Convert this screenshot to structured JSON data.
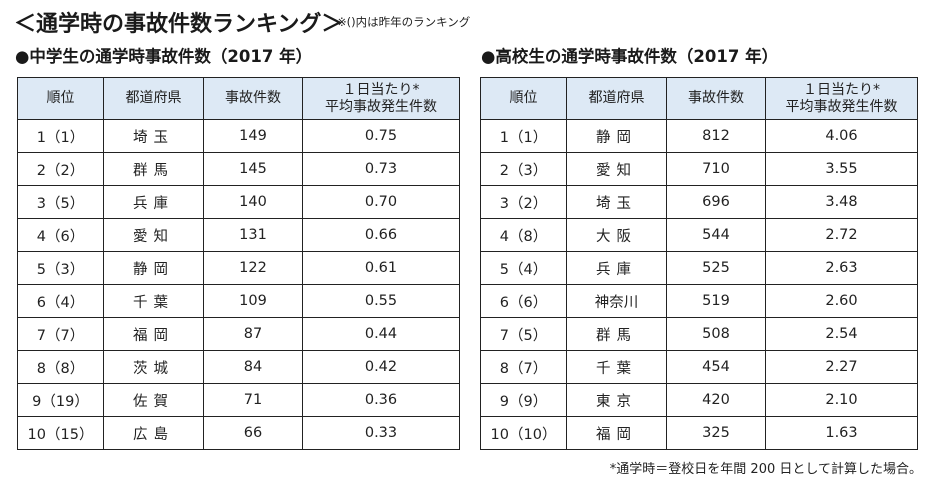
{
  "page": {
    "title": "＜通学時の事故件数ランキング＞",
    "note": "※()内は昨年のランキング",
    "footnote": "*通学時＝登校日を年間 200 日として計算した場合。"
  },
  "columns": {
    "rank": "順位",
    "prefecture": "都道府県",
    "count": "事故件数",
    "avg_line1": "１日当たり*",
    "avg_line2": "平均事故発生件数"
  },
  "junior_high": {
    "title": "●中学生の通学時事故件数（2017 年）",
    "rows": [
      {
        "rank": "1（1）",
        "prefecture": "埼玉",
        "count": "149",
        "avg": "0.75"
      },
      {
        "rank": "2（2）",
        "prefecture": "群馬",
        "count": "145",
        "avg": "0.73"
      },
      {
        "rank": "3（5）",
        "prefecture": "兵庫",
        "count": "140",
        "avg": "0.70"
      },
      {
        "rank": "4（6）",
        "prefecture": "愛知",
        "count": "131",
        "avg": "0.66"
      },
      {
        "rank": "5（3）",
        "prefecture": "静岡",
        "count": "122",
        "avg": "0.61"
      },
      {
        "rank": "6（4）",
        "prefecture": "千葉",
        "count": "109",
        "avg": "0.55"
      },
      {
        "rank": "7（7）",
        "prefecture": "福岡",
        "count": "87",
        "avg": "0.44"
      },
      {
        "rank": "8（8）",
        "prefecture": "茨城",
        "count": "84",
        "avg": "0.42"
      },
      {
        "rank": "9（19）",
        "prefecture": "佐賀",
        "count": "71",
        "avg": "0.36"
      },
      {
        "rank": "10（15）",
        "prefecture": "広島",
        "count": "66",
        "avg": "0.33"
      }
    ]
  },
  "high_school": {
    "title": "●高校生の通学時事故件数（2017 年）",
    "rows": [
      {
        "rank": "1（1）",
        "prefecture": "静岡",
        "count": "812",
        "avg": "4.06"
      },
      {
        "rank": "2（3）",
        "prefecture": "愛知",
        "count": "710",
        "avg": "3.55"
      },
      {
        "rank": "3（2）",
        "prefecture": "埼玉",
        "count": "696",
        "avg": "3.48"
      },
      {
        "rank": "4（8）",
        "prefecture": "大阪",
        "count": "544",
        "avg": "2.72"
      },
      {
        "rank": "5（4）",
        "prefecture": "兵庫",
        "count": "525",
        "avg": "2.63"
      },
      {
        "rank": "6（6）",
        "prefecture": "神奈川",
        "count": "519",
        "avg": "2.60"
      },
      {
        "rank": "7（5）",
        "prefecture": "群馬",
        "count": "508",
        "avg": "2.54"
      },
      {
        "rank": "8（7）",
        "prefecture": "千葉",
        "count": "454",
        "avg": "2.27"
      },
      {
        "rank": "9（9）",
        "prefecture": "東京",
        "count": "420",
        "avg": "2.10"
      },
      {
        "rank": "10（10）",
        "prefecture": "福岡",
        "count": "325",
        "avg": "1.63"
      }
    ]
  }
}
